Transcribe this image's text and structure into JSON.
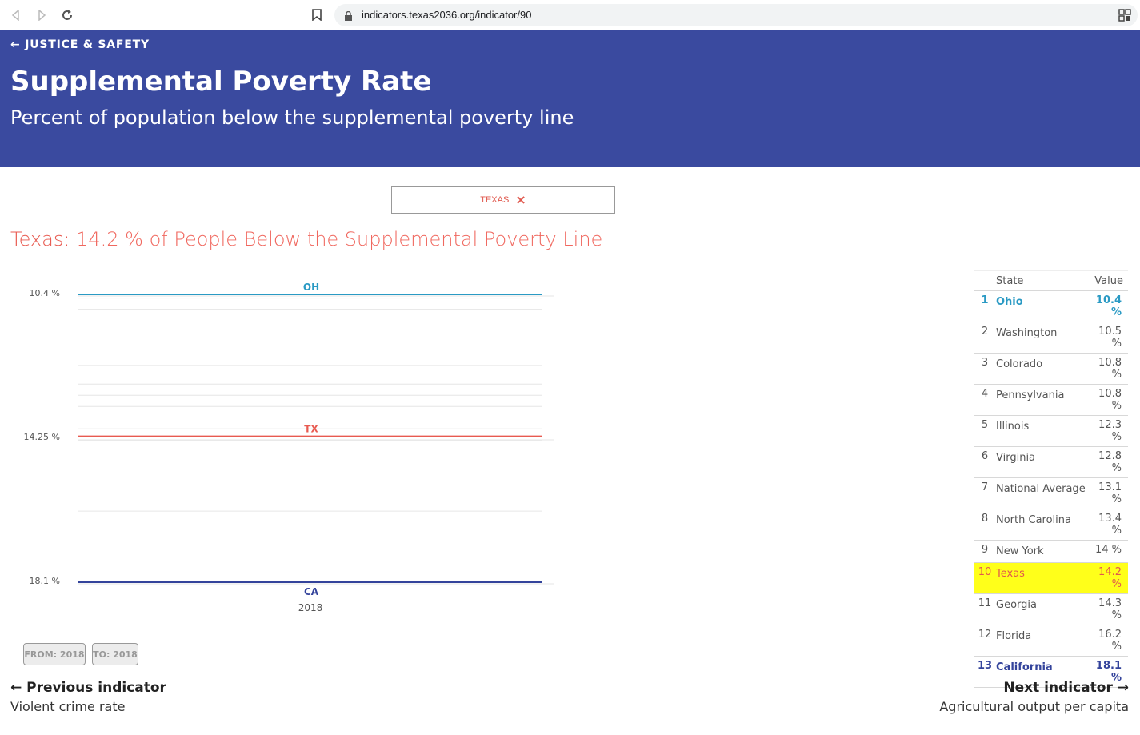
{
  "browser": {
    "url": "indicators.texas2036.org/indicator/90",
    "icons": [
      "back-icon",
      "forward-icon",
      "reload-icon",
      "bookmark-icon",
      "lock-icon",
      "extension-icon"
    ]
  },
  "header": {
    "category": "← JUSTICE & SAFETY",
    "title": "Supplemental Poverty Rate",
    "subtitle": "Percent of population below the supplemental poverty line",
    "background": "#3a4a9f"
  },
  "filter": {
    "label": "TEXAS",
    "close_icon": "×",
    "color": "#e0584d"
  },
  "headline": {
    "state": "Texas:",
    "text": " 14.2 % of People Below the Supplemental Poverty Line"
  },
  "chart_data": {
    "type": "line",
    "ylim_top": 10.4,
    "ylim_bottom": 18.1,
    "y_ticks": [
      "10.4 %",
      "14.25 %",
      "18.1 %"
    ],
    "x_tick": "2018",
    "series": [
      {
        "name": "OH",
        "value": 10.4,
        "color": "#2a9ac4"
      },
      {
        "name": "TX",
        "value": 14.2,
        "color": "#e85a50"
      },
      {
        "name": "CA",
        "value": 18.1,
        "color": "#33439b"
      }
    ],
    "other_values": [
      10.5,
      10.8,
      10.8,
      12.3,
      12.8,
      13.1,
      13.4,
      14,
      14.3,
      16.2
    ]
  },
  "ranking": {
    "header_state": "State",
    "header_value": "Value",
    "rows": [
      {
        "rank": "1",
        "state": "Ohio",
        "value": "10.4 %"
      },
      {
        "rank": "2",
        "state": "Washington",
        "value": "10.5 %"
      },
      {
        "rank": "3",
        "state": "Colorado",
        "value": "10.8 %"
      },
      {
        "rank": "4",
        "state": "Pennsylvania",
        "value": "10.8 %"
      },
      {
        "rank": "5",
        "state": "Illinois",
        "value": "12.3 %"
      },
      {
        "rank": "6",
        "state": "Virginia",
        "value": "12.8 %"
      },
      {
        "rank": "7",
        "state": "National Average",
        "value": "13.1 %"
      },
      {
        "rank": "8",
        "state": "North Carolina",
        "value": "13.4 %"
      },
      {
        "rank": "9",
        "state": "New York",
        "value": "14 %"
      },
      {
        "rank": "10",
        "state": "Texas",
        "value": "14.2 %"
      },
      {
        "rank": "11",
        "state": "Georgia",
        "value": "14.3 %"
      },
      {
        "rank": "12",
        "state": "Florida",
        "value": "16.2 %"
      },
      {
        "rank": "13",
        "state": "California",
        "value": "18.1 %"
      }
    ]
  },
  "range": {
    "from": "FROM: 2018",
    "to": "TO: 2018"
  },
  "pager": {
    "prev_label": "← Previous indicator",
    "prev_name": "Violent crime rate",
    "next_label": "Next indicator →",
    "next_name": "Agricultural output per capita"
  }
}
